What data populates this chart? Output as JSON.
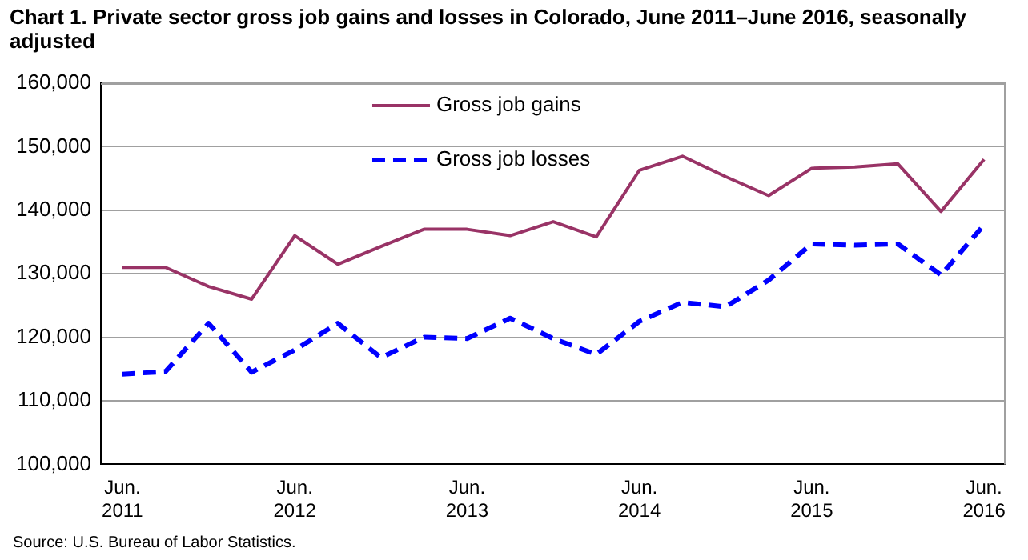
{
  "chart_data": {
    "type": "line",
    "title": "Chart 1. Private sector gross  job gains and losses  in Colorado, June 2011–June 2016, seasonally adjusted",
    "categories": [
      "Jun. 2011",
      null,
      null,
      null,
      "Jun. 2012",
      null,
      null,
      null,
      "Jun. 2013",
      null,
      null,
      null,
      "Jun. 2014",
      null,
      null,
      null,
      "Jun. 2015",
      null,
      null,
      null,
      "Jun. 2016"
    ],
    "series": [
      {
        "name": "Gross job gains",
        "color": "#993366",
        "line_style": "solid",
        "values": [
          131000,
          131000,
          128000,
          126000,
          136000,
          131500,
          134300,
          137000,
          137000,
          136000,
          138200,
          135800,
          146300,
          148500,
          145300,
          142300,
          146600,
          146800,
          147300,
          139800,
          148000
        ]
      },
      {
        "name": "Gross job losses",
        "color": "#0000ff",
        "line_style": "dashed",
        "values": [
          114200,
          114600,
          122200,
          114500,
          118000,
          122200,
          116800,
          120000,
          119800,
          123000,
          119800,
          117300,
          122500,
          125500,
          124800,
          129000,
          134700,
          134500,
          134700,
          129800,
          137700
        ]
      }
    ],
    "ylim": [
      100000,
      160000
    ],
    "yticks": [
      {
        "value": 100000,
        "label": "100,000"
      },
      {
        "value": 110000,
        "label": "110,000"
      },
      {
        "value": 120000,
        "label": "120,000"
      },
      {
        "value": 130000,
        "label": "130,000"
      },
      {
        "value": 140000,
        "label": "140,000"
      },
      {
        "value": 150000,
        "label": "150,000"
      },
      {
        "value": 160000,
        "label": "160,000"
      }
    ],
    "grid": "y",
    "legend": "top",
    "marker": "none",
    "annotations": [
      "Source: U.S. Bureau of Labor Statistics."
    ]
  }
}
